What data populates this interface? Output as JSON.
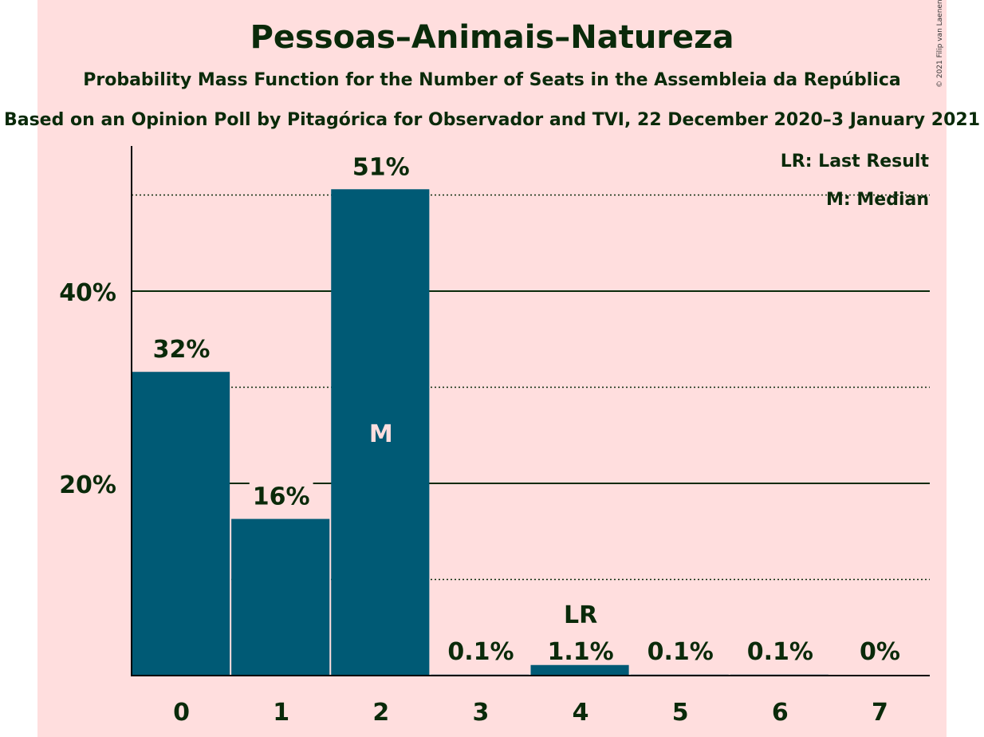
{
  "title": "Pessoas–Animais–Natureza",
  "subtitle": "Probability Mass Function for the Number of Seats in the Assembleia da República",
  "subtitle2": "Based on an Opinion Poll by Pitagórica for Observador and TVI, 22 December 2020–3 January 2021",
  "copyright": "© 2021 Filip van Laenen",
  "colors": {
    "background": "#FFDEDE",
    "bar": "#005A75",
    "text": "#0A2A0A",
    "median_label": "#FFDEDE"
  },
  "legend": {
    "last_result": "LR: Last Result",
    "median": "M: Median"
  },
  "chart_data": {
    "type": "bar",
    "categories": [
      "0",
      "1",
      "2",
      "3",
      "4",
      "5",
      "6",
      "7"
    ],
    "values": [
      31.6,
      16.3,
      50.6,
      0.1,
      1.1,
      0.1,
      0.1,
      0
    ],
    "value_labels": [
      "32%",
      "16%",
      "51%",
      "0.1%",
      "1.1%",
      "0.1%",
      "0.1%",
      "0%"
    ],
    "ylim": [
      0,
      55
    ],
    "y_ticks": [
      20,
      40
    ],
    "y_tick_labels": [
      "20%",
      "40%"
    ],
    "dotted_gridlines": [
      10,
      30,
      50
    ],
    "median_category": "2",
    "median_marker": "M",
    "last_result_category": "4",
    "last_result_marker": "LR",
    "legend_position": "top-right"
  }
}
